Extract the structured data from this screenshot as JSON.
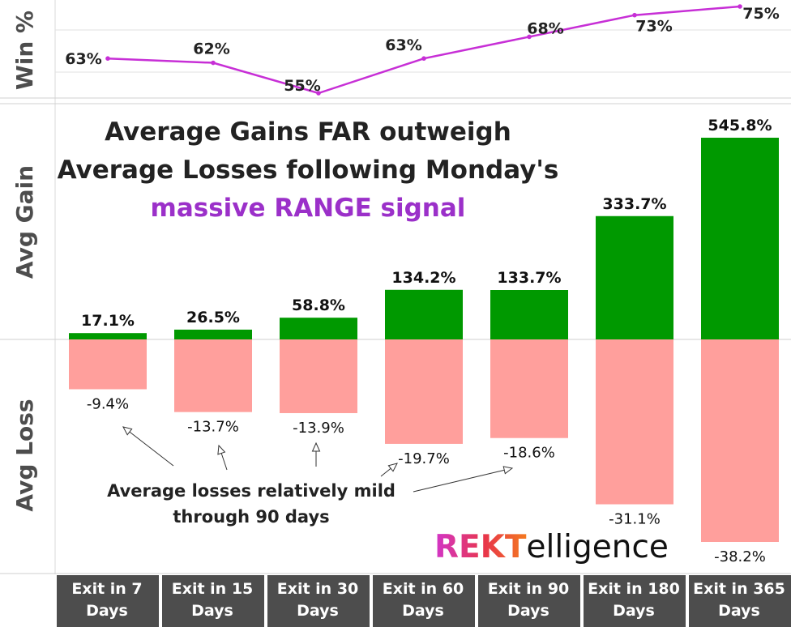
{
  "chart_data": {
    "type": "bar",
    "categories": [
      "Exit in 7 Days",
      "Exit in 15 Days",
      "Exit in 30 Days",
      "Exit in 60 Days",
      "Exit in 90 Days",
      "Exit in 180 Days",
      "Exit in 365 Days"
    ],
    "title_lines": [
      "Average Gains FAR outweigh",
      "Average Losses following Monday's",
      "massive RANGE signal"
    ],
    "win_rate": {
      "ylabel": "Win %",
      "values": [
        63,
        62,
        55,
        63,
        68,
        73,
        75
      ],
      "labels": [
        "63%",
        "62%",
        "55%",
        "63%",
        "68%",
        "73%",
        "75%"
      ],
      "color": "#c72fd6",
      "ylim": [
        53,
        77
      ]
    },
    "avg_gain": {
      "ylabel": "Avg Gain",
      "values": [
        17.1,
        26.5,
        58.8,
        134.2,
        133.7,
        333.7,
        545.8
      ],
      "labels": [
        "17.1%",
        "26.5%",
        "58.8%",
        "134.2%",
        "133.7%",
        "333.7%",
        "545.8%"
      ],
      "color": "#009900"
    },
    "avg_loss": {
      "ylabel": "Avg Loss",
      "values": [
        -9.4,
        -13.7,
        -13.9,
        -19.7,
        -18.6,
        -31.1,
        -38.2
      ],
      "labels": [
        "-9.4%",
        "-13.7%",
        "-13.9%",
        "-19.7%",
        "-18.6%",
        "-31.1%",
        "-38.2%"
      ],
      "color": "#ff9f9c"
    },
    "annotation": "Average losses relatively mild through 90 days",
    "grid": true
  },
  "x_axis_labels": [
    [
      "Exit in 7",
      "Days"
    ],
    [
      "Exit in 15",
      "Days"
    ],
    [
      "Exit in 30",
      "Days"
    ],
    [
      "Exit in 60",
      "Days"
    ],
    [
      "Exit in 90",
      "Days"
    ],
    [
      "Exit in 180",
      "Days"
    ],
    [
      "Exit in 365",
      "Days"
    ]
  ],
  "brand": {
    "part1": "REKT",
    "part2": "elligence"
  },
  "colors": {
    "axis_band": "#4d4d4d",
    "axis_text": "#ffffff",
    "panel_label": "#4d4d4d"
  }
}
